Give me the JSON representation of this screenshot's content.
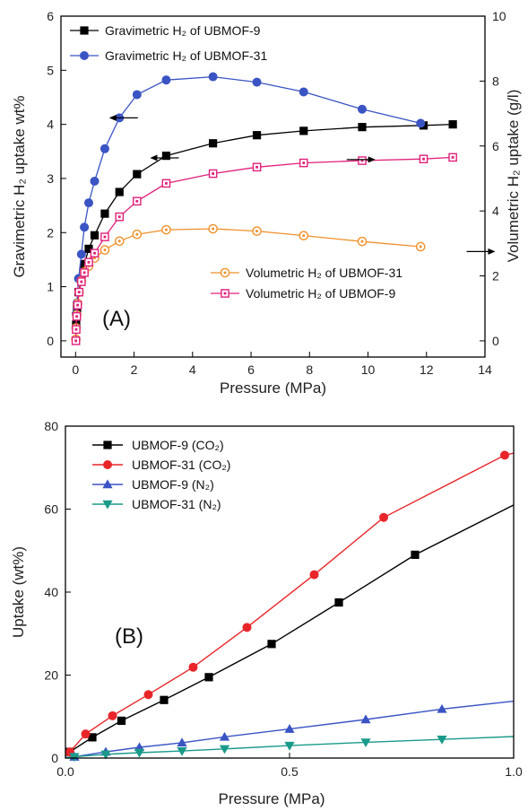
{
  "chart_data": [
    {
      "type": "line",
      "panel_label": "(A)",
      "xlabel": "Pressure (MPa)",
      "ylabel": "Gravimetric H₂ uptake wt%",
      "y2label": "Volumetric H₂ uptake (g/l)",
      "xlim": [
        -0.5,
        14
      ],
      "ylim": [
        -0.3,
        6
      ],
      "y2lim": [
        -0.5,
        10
      ],
      "xticks": [
        "0",
        "2",
        "4",
        "6",
        "8",
        "10",
        "12",
        "14"
      ],
      "yticks": [
        "0",
        "1",
        "2",
        "3",
        "4",
        "5",
        "6"
      ],
      "y2ticks": [
        "0",
        "2",
        "4",
        "6",
        "8",
        "10"
      ],
      "grid": false,
      "series": [
        {
          "name": "Gravimetric H₂ of UBMOF-9",
          "axis": "left",
          "marker": "square-filled",
          "color": "#000000",
          "x": [
            0.02,
            0.05,
            0.1,
            0.2,
            0.3,
            0.45,
            0.65,
            1.0,
            1.5,
            2.1,
            3.1,
            4.7,
            6.2,
            7.8,
            9.8,
            11.9,
            12.9
          ],
          "y": [
            0.3,
            0.6,
            0.9,
            1.15,
            1.42,
            1.7,
            1.95,
            2.35,
            2.75,
            3.08,
            3.42,
            3.65,
            3.8,
            3.88,
            3.95,
            3.98,
            4.0
          ]
        },
        {
          "name": "Gravimetric H₂ of UBMOF-31",
          "axis": "left",
          "marker": "circle-filled",
          "color": "#3a54c4",
          "x": [
            0.02,
            0.05,
            0.1,
            0.2,
            0.3,
            0.45,
            0.65,
            1.0,
            1.5,
            2.1,
            3.1,
            4.7,
            6.2,
            7.8,
            9.8,
            11.8
          ],
          "y": [
            0.5,
            0.7,
            1.15,
            1.6,
            2.1,
            2.55,
            2.95,
            3.55,
            4.12,
            4.55,
            4.82,
            4.88,
            4.78,
            4.6,
            4.28,
            4.02
          ]
        },
        {
          "name": "Volumetric H₂ of UBMOF-31",
          "axis": "right",
          "marker": "circle-open-dot",
          "color": "#f0902a",
          "x": [
            0.01,
            0.02,
            0.04,
            0.07,
            0.12,
            0.2,
            0.3,
            0.45,
            0.65,
            1.0,
            1.5,
            2.1,
            3.1,
            4.7,
            6.2,
            7.8,
            9.8,
            11.8
          ],
          "y": [
            0.05,
            0.4,
            0.8,
            1.15,
            1.5,
            1.85,
            2.12,
            2.3,
            2.55,
            2.8,
            3.07,
            3.28,
            3.42,
            3.45,
            3.38,
            3.24,
            3.06,
            2.9
          ]
        },
        {
          "name": "Volumetric H₂ of UBMOF-9",
          "axis": "right",
          "marker": "square-open-dot",
          "color": "#e0207a",
          "x": [
            0.01,
            0.02,
            0.04,
            0.07,
            0.12,
            0.2,
            0.3,
            0.45,
            0.65,
            1.0,
            1.5,
            2.1,
            3.1,
            4.7,
            6.2,
            7.8,
            9.8,
            11.9,
            12.9
          ],
          "y": [
            0.0,
            0.35,
            0.75,
            1.1,
            1.5,
            1.82,
            2.1,
            2.42,
            2.7,
            3.2,
            3.82,
            4.3,
            4.85,
            5.15,
            5.35,
            5.48,
            5.55,
            5.6,
            5.65
          ]
        }
      ],
      "arrows": [
        {
          "direction": "left",
          "x": 1.7,
          "y": 4.12,
          "axis": "left"
        },
        {
          "direction": "left",
          "x": 3.1,
          "y": 3.38,
          "axis": "left"
        },
        {
          "direction": "right",
          "x": 9.7,
          "y": 3.35,
          "axis": "left"
        },
        {
          "direction": "right",
          "x": 13.8,
          "y": 1.65,
          "axis": "left"
        }
      ]
    },
    {
      "type": "line",
      "panel_label": "(B)",
      "xlabel": "Pressure (MPa)",
      "ylabel": "Uptake (wt%)",
      "xlim": [
        0,
        1.0
      ],
      "ylim": [
        0,
        80
      ],
      "xticks": [
        "0.0",
        "0.5",
        "1.0"
      ],
      "yticks": [
        "0",
        "20",
        "40",
        "60",
        "80"
      ],
      "grid": false,
      "series": [
        {
          "name": "UBMOF-9 (CO₂)",
          "marker": "square-filled",
          "color": "#000000",
          "x": [
            0.0,
            0.01,
            0.06,
            0.125,
            0.22,
            0.32,
            0.46,
            0.61,
            0.78,
            1.0
          ],
          "y": [
            0.5,
            1.5,
            5,
            9,
            14,
            19.5,
            27.5,
            37.5,
            49,
            61
          ],
          "markers_at": [
            1,
            2,
            3,
            4,
            5,
            6,
            7,
            8
          ]
        },
        {
          "name": "UBMOF-31 (CO₂)",
          "marker": "circle-filled",
          "color": "#e8262a",
          "x": [
            0.0,
            0.01,
            0.045,
            0.105,
            0.185,
            0.285,
            0.405,
            0.555,
            0.71,
            0.98,
            1.0
          ],
          "y": [
            0.5,
            1.5,
            5.8,
            10.2,
            15.3,
            21.9,
            31.5,
            44.2,
            58,
            73,
            73.5
          ],
          "markers_at": [
            1,
            2,
            3,
            4,
            5,
            6,
            7,
            8,
            9
          ]
        },
        {
          "name": "UBMOF-9 (N₂)",
          "marker": "triangle-up",
          "color": "#3a54c4",
          "x": [
            0.0,
            0.02,
            0.09,
            0.165,
            0.26,
            0.355,
            0.5,
            0.67,
            0.84,
            1.0
          ],
          "y": [
            0.1,
            0.3,
            1.5,
            2.6,
            3.7,
            5.1,
            7.0,
            9.3,
            11.8,
            13.7
          ],
          "markers_at": [
            1,
            2,
            3,
            4,
            5,
            6,
            7,
            8
          ]
        },
        {
          "name": "UBMOF-31 (N₂)",
          "marker": "triangle-down",
          "color": "#1a9a8a",
          "x": [
            0.0,
            0.02,
            0.09,
            0.165,
            0.26,
            0.355,
            0.5,
            0.67,
            0.84,
            1.0
          ],
          "y": [
            0.1,
            0.3,
            0.9,
            1.3,
            1.7,
            2.2,
            3.0,
            3.8,
            4.5,
            5.2
          ],
          "markers_at": [
            1,
            2,
            3,
            4,
            5,
            6,
            7,
            8
          ]
        }
      ]
    }
  ]
}
